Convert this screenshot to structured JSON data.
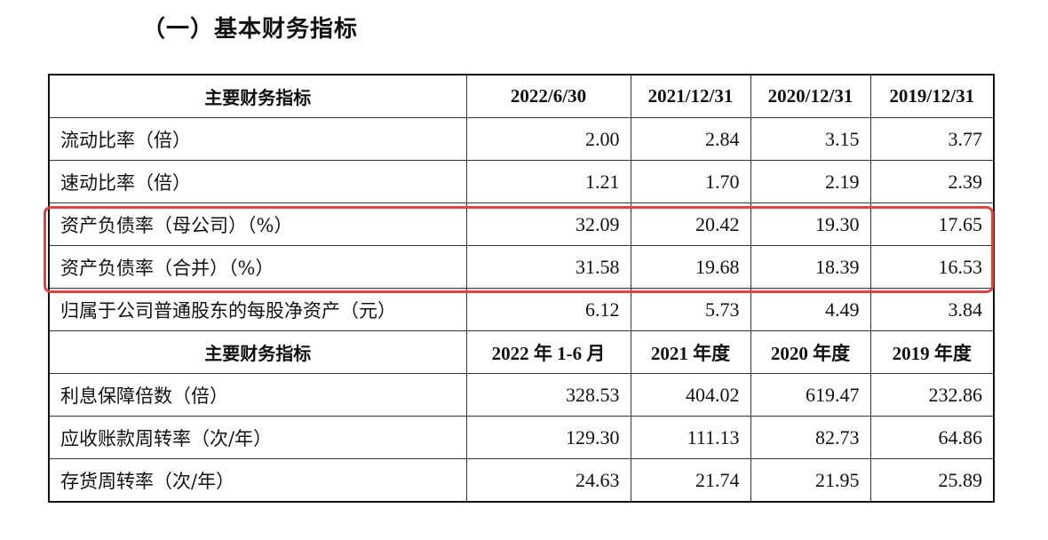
{
  "section_title": "（一）基本财务指标",
  "table1": {
    "header": [
      "主要财务指标",
      "2022/6/30",
      "2021/12/31",
      "2020/12/31",
      "2019/12/31"
    ],
    "rows": [
      {
        "label": "流动比率（倍）",
        "values": [
          "2.00",
          "2.84",
          "3.15",
          "3.77"
        ]
      },
      {
        "label": "速动比率（倍）",
        "values": [
          "1.21",
          "1.70",
          "2.19",
          "2.39"
        ]
      },
      {
        "label": "资产负债率（母公司）（%）",
        "values": [
          "32.09",
          "20.42",
          "19.30",
          "17.65"
        ]
      },
      {
        "label": "资产负债率（合并）（%）",
        "values": [
          "31.58",
          "19.68",
          "18.39",
          "16.53"
        ]
      },
      {
        "label": "归属于公司普通股东的每股净资产（元）",
        "values": [
          "6.12",
          "5.73",
          "4.49",
          "3.84"
        ]
      }
    ]
  },
  "table2": {
    "header": [
      "主要财务指标",
      "2022 年 1-6 月",
      "2021 年度",
      "2020 年度",
      "2019 年度"
    ],
    "rows": [
      {
        "label": "利息保障倍数（倍）",
        "values": [
          "328.53",
          "404.02",
          "619.47",
          "232.86"
        ]
      },
      {
        "label": "应收账款周转率（次/年）",
        "values": [
          "129.30",
          "111.13",
          "82.73",
          "64.86"
        ]
      },
      {
        "label": "存货周转率（次/年）",
        "values": [
          "24.63",
          "21.74",
          "21.95",
          "25.89"
        ]
      }
    ]
  },
  "highlight_color": "#e0443e"
}
